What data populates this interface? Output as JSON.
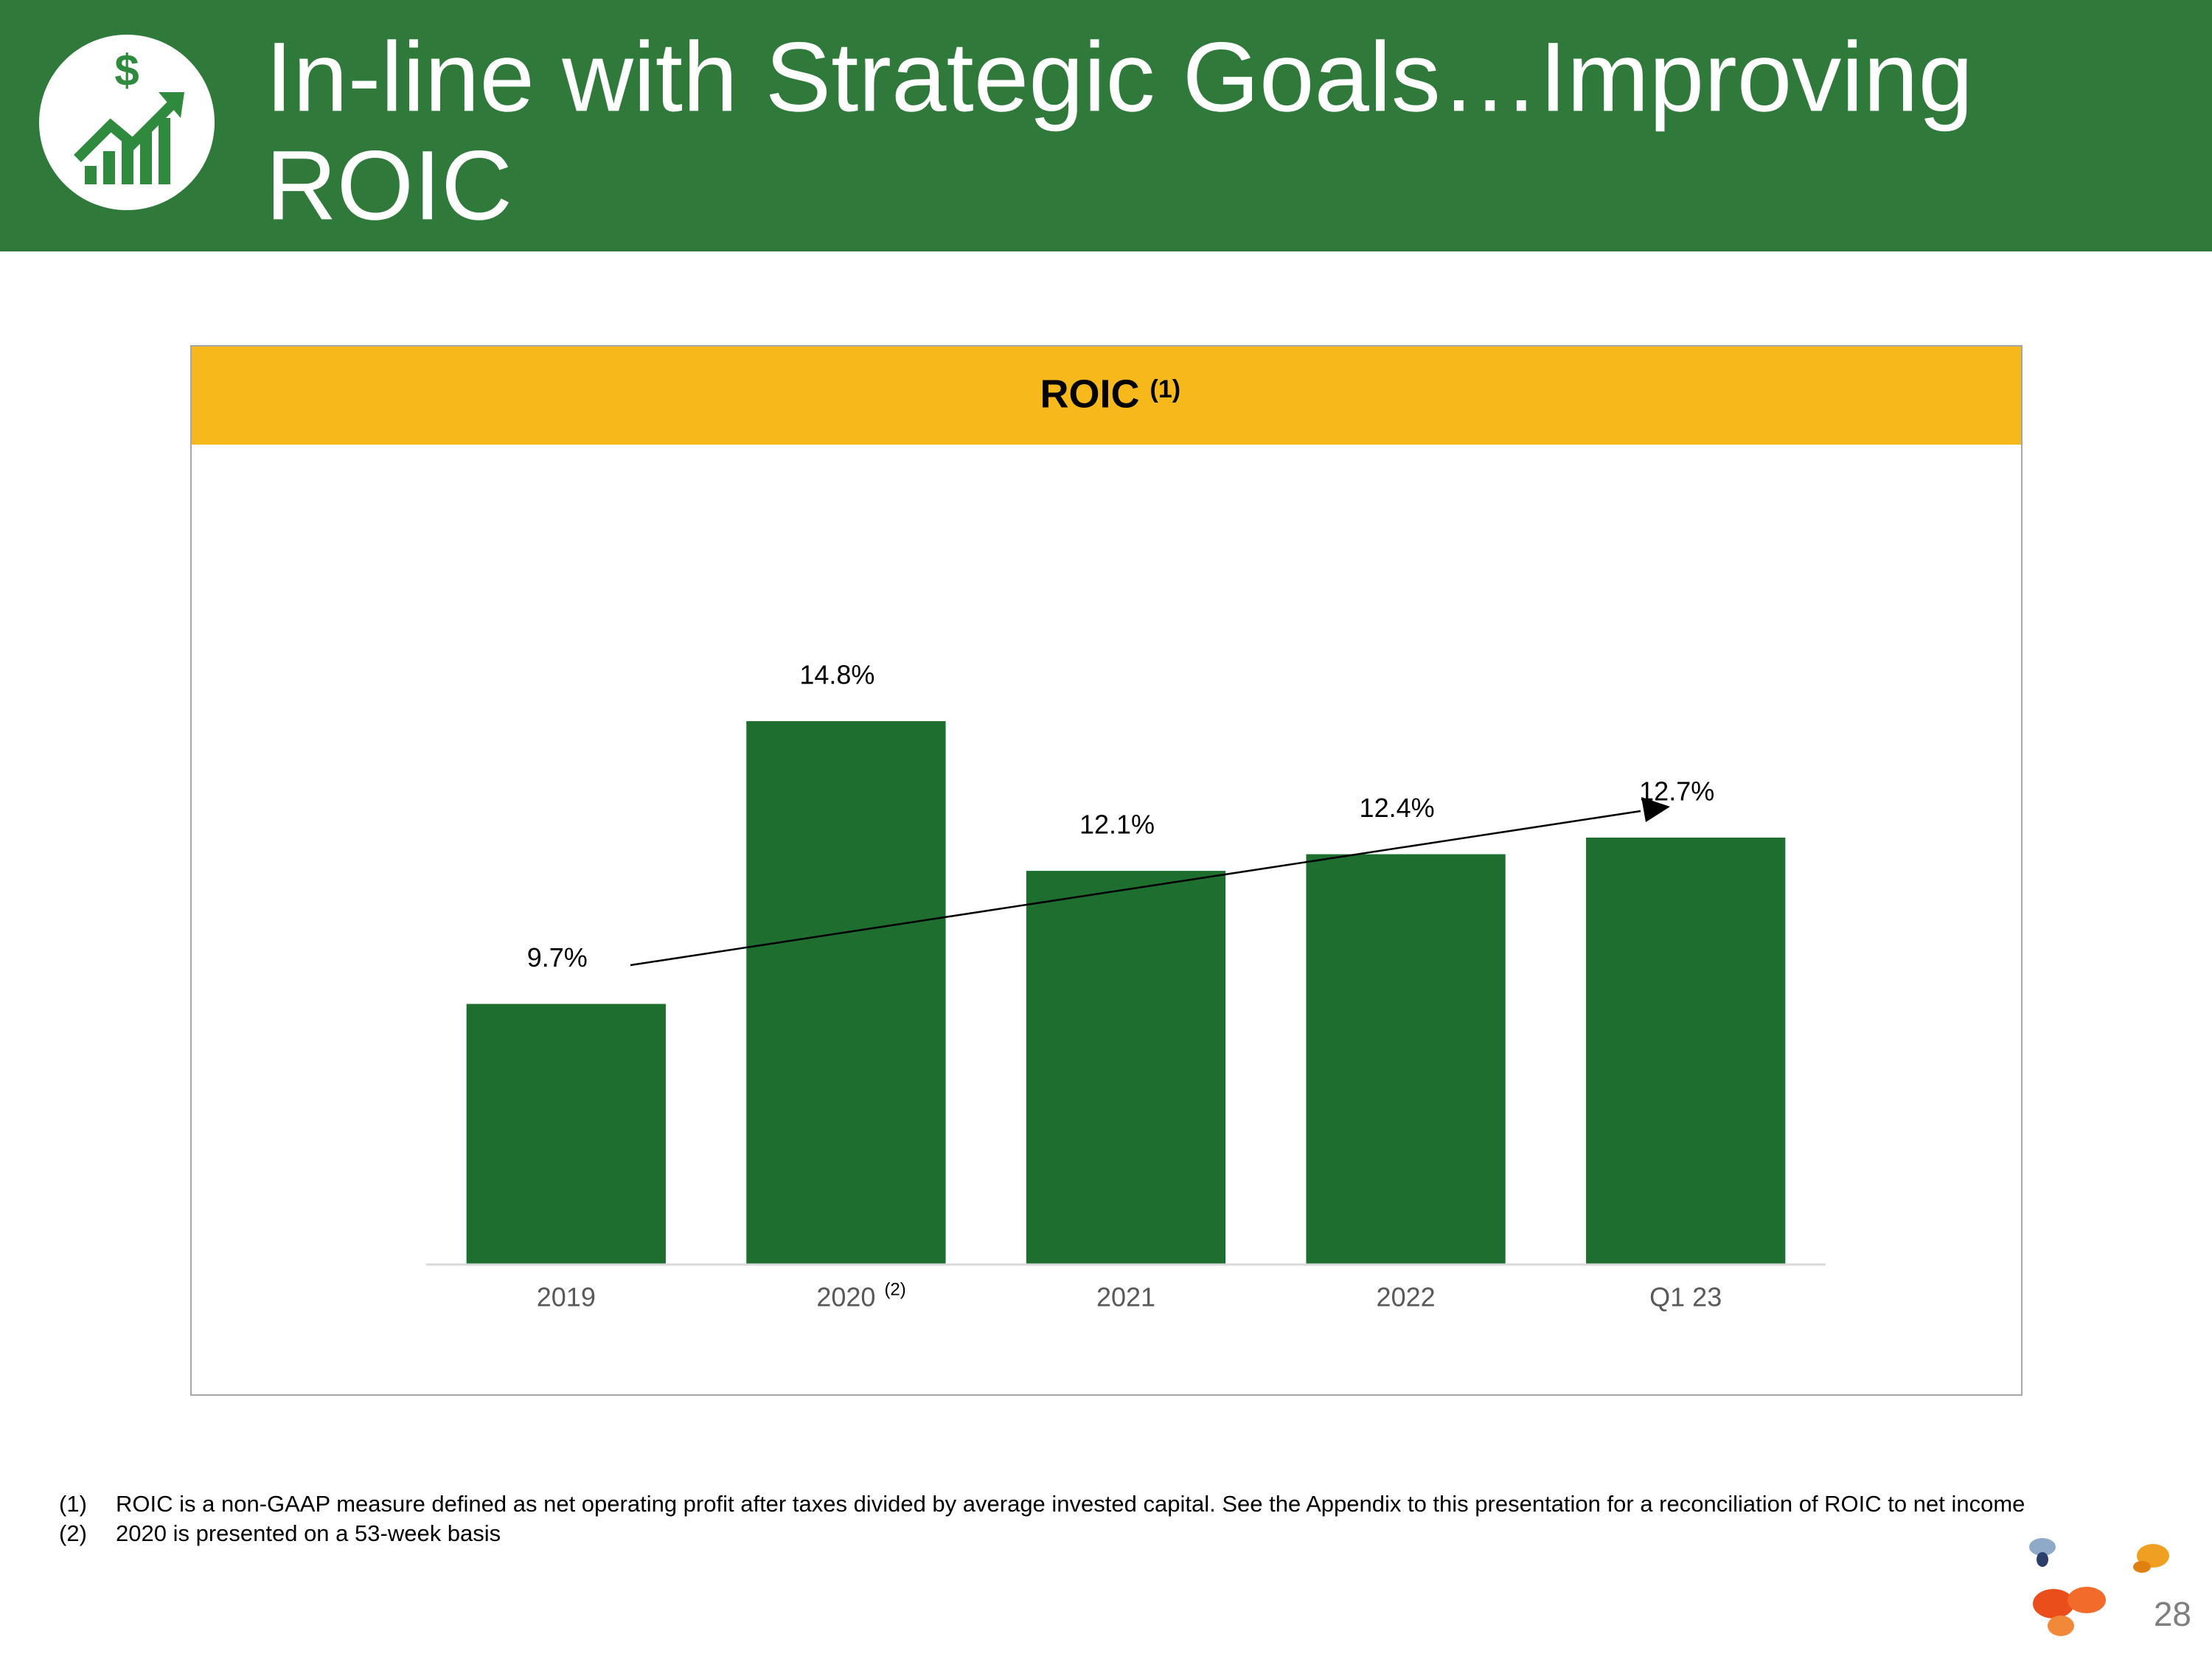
{
  "header": {
    "title_lines": [
      "In-line with Strategic Goals…Improving",
      "ROIC"
    ]
  },
  "chart_data": {
    "type": "bar",
    "title": "ROIC",
    "title_note": "(1)",
    "categories": [
      "2019",
      "2020",
      "2021",
      "2022",
      "Q1 23"
    ],
    "category_note": "(2)",
    "values": [
      9.7,
      14.8,
      12.1,
      12.4,
      12.7
    ],
    "value_labels": [
      "9.7%",
      "14.8%",
      "12.1%",
      "12.4%",
      "12.7%"
    ],
    "color": "#1e6e30",
    "ylim": [
      5,
      20
    ],
    "grid": false
  },
  "footnotes": [
    {
      "marker": "(1)",
      "text": "ROIC is a non-GAAP measure defined as net operating profit after taxes divided by average invested capital. See the Appendix to this presentation for a reconciliation of ROIC to net income"
    },
    {
      "marker": "(2)",
      "text": "2020 is presented on a 53-week basis"
    }
  ],
  "page_number": "28"
}
